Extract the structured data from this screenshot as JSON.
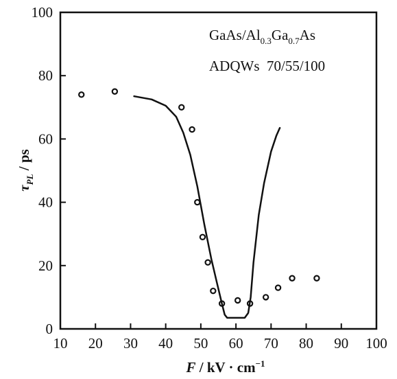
{
  "chart_data": {
    "type": "scatter",
    "title": "",
    "xlabel_var": "F",
    "xlabel_rest": " / kV · cm",
    "xlabel_sup": "−1",
    "ylabel_var": "τ",
    "ylabel_sub": "PL",
    "ylabel_rest": " / ps",
    "xlim": [
      10,
      100
    ],
    "ylim": [
      0,
      100
    ],
    "xticks": [
      10,
      20,
      30,
      40,
      50,
      60,
      70,
      80,
      90,
      100
    ],
    "yticks": [
      0,
      20,
      40,
      60,
      80,
      100
    ],
    "grid": false,
    "annotations": {
      "line1": {
        "a": "GaAs/Al",
        "b": "0.3",
        "c": "Ga",
        "d": "0.7",
        "e": "As"
      },
      "line2": "ADQWs  70/55/100"
    },
    "series": [
      {
        "kind": "scatter",
        "marker": "open-circle",
        "x": [
          16,
          25.5,
          44.5,
          47.5,
          49,
          50.5,
          52,
          53.5,
          56,
          60.5,
          64,
          68.5,
          72,
          76,
          83
        ],
        "y": [
          74,
          75,
          70,
          63,
          40,
          29,
          21,
          12,
          8,
          9,
          8,
          10,
          13,
          16,
          16
        ]
      },
      {
        "kind": "line",
        "x": [
          31,
          36,
          40,
          43,
          45,
          47,
          49,
          51,
          53,
          54.5,
          56,
          56.8,
          57.5,
          59,
          61,
          62.5,
          63.5,
          64.2,
          65,
          66.5,
          68,
          70,
          71.5,
          72.5
        ],
        "y": [
          73.5,
          72.5,
          70.5,
          67,
          62,
          55,
          45,
          33,
          22,
          15,
          8,
          4.5,
          3.5,
          3.5,
          3.5,
          3.5,
          5,
          10,
          21,
          36,
          46,
          56,
          61,
          63.5
        ]
      }
    ]
  }
}
